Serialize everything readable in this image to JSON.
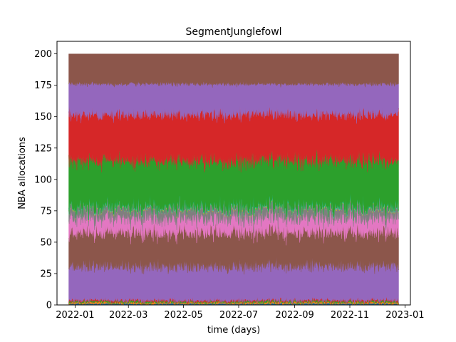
{
  "chart_data": {
    "type": "area",
    "title": "SegmentJunglefowl",
    "xlabel": "time (days)",
    "ylabel": "NBA allocations",
    "x_start": "2021-12-25",
    "x_end": "2022-12-25",
    "xlim": [
      "2021-12-12",
      "2023-01-07"
    ],
    "ylim": [
      0,
      210
    ],
    "x_ticks": [
      "2022-01",
      "2022-03",
      "2022-05",
      "2022-07",
      "2022-09",
      "2022-11",
      "2023-01"
    ],
    "y_ticks": [
      0,
      25,
      50,
      75,
      100,
      125,
      150,
      175,
      200
    ],
    "grid": false,
    "stacked": true,
    "series": [
      {
        "color": "#1f77b4",
        "base": 1.0,
        "jitter": 1.0
      },
      {
        "color": "#ff7f0e",
        "base": 1.0,
        "jitter": 1.0
      },
      {
        "color": "#2ca02c",
        "base": 1.0,
        "jitter": 1.0
      },
      {
        "color": "#d62728",
        "base": 1.0,
        "jitter": 1.0
      },
      {
        "color": "#9467bd",
        "base": 28.0,
        "jitter": 5.0
      },
      {
        "color": "#8c564b",
        "base": 28.0,
        "jitter": 5.0
      },
      {
        "color": "#e377c2",
        "base": 12.0,
        "jitter": 4.0
      },
      {
        "color": "#7f7f7f",
        "base": 8.0,
        "jitter": 4.0
      },
      {
        "color": "#bcbd22",
        "base": 0.6,
        "jitter": 0.6
      },
      {
        "color": "#17becf",
        "base": 0.6,
        "jitter": 0.6
      },
      {
        "color": "#2ca02c",
        "base": 38.0,
        "jitter": 6.0
      },
      {
        "color": "#d62728",
        "base": 38.0,
        "jitter": 6.0
      },
      {
        "color": "#9467bd",
        "base": 25.0,
        "jitter": 5.0
      },
      {
        "color": "#8c564b",
        "base": 24.8,
        "jitter": 0.0
      }
    ],
    "total": 200
  }
}
